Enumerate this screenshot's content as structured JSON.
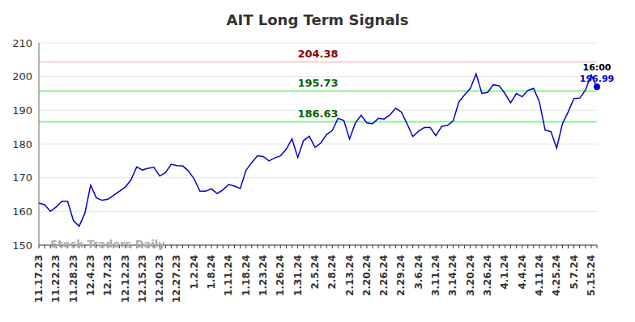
{
  "chart_data": {
    "type": "line",
    "title": "AIT Long Term Signals",
    "watermark": "Stock Traders Daily",
    "last_point_label": "16:00",
    "color": "#0000cc",
    "categories": [
      "11.17.23",
      null,
      null,
      "11.22.23",
      null,
      null,
      "11.28.23",
      null,
      null,
      "12.4.23",
      null,
      null,
      "12.7.23",
      null,
      null,
      "12.12.23",
      null,
      null,
      "12.15.23",
      null,
      null,
      "12.20.23",
      null,
      null,
      "12.27.23",
      null,
      null,
      "1.2.24",
      null,
      null,
      "1.8.24",
      null,
      null,
      "1.11.24",
      null,
      null,
      "1.18.24",
      null,
      null,
      "1.23.24",
      null,
      null,
      "1.26.24",
      null,
      null,
      "1.31.24",
      null,
      null,
      "2.5.24",
      null,
      null,
      "2.8.24",
      null,
      null,
      "2.13.24",
      null,
      null,
      "2.20.24",
      null,
      null,
      "2.26.24",
      null,
      null,
      "2.29.24",
      null,
      null,
      "3.6.24",
      null,
      null,
      "3.11.24",
      null,
      null,
      "3.14.24",
      null,
      null,
      "3.20.24",
      null,
      null,
      "3.26.24",
      null,
      null,
      "4.1.24",
      null,
      null,
      "4.4.24",
      null,
      null,
      "4.11.24",
      null,
      null,
      "4.25.24",
      null,
      null,
      "5.7.24",
      null,
      null,
      "5.15.24",
      null
    ],
    "values": [
      162.5,
      162,
      160,
      161.3,
      163,
      163,
      157.3,
      155.6,
      159.5,
      167.8,
      164,
      163.3,
      163.6,
      164.8,
      166,
      167.2,
      169.3,
      173.2,
      172.3,
      172.8,
      173.1,
      170.5,
      171.5,
      174,
      173.6,
      173.5,
      172,
      169.6,
      166,
      166,
      166.7,
      165.3,
      166.4,
      168,
      167.5,
      166.8,
      172.2,
      174.5,
      176.5,
      176.3,
      175,
      175.9,
      176.5,
      178.5,
      181.5,
      176,
      181,
      182.3,
      179,
      180.3,
      182.8,
      184,
      187.6,
      187,
      181.5,
      186.2,
      188.5,
      186.3,
      186,
      187.6,
      187.4,
      188.6,
      190.6,
      189.5,
      186,
      182.2,
      183.8,
      184.9,
      184.9,
      182.5,
      185.2,
      185.5,
      186.8,
      192.5,
      194.6,
      196.5,
      200.8,
      195,
      195.3,
      197.6,
      197.3,
      195,
      192.2,
      195,
      194,
      195.9,
      196.5,
      192.5,
      184.1,
      183.7,
      178.8,
      186,
      189.5,
      193.5,
      193.6,
      196,
      200.5,
      196.99
    ],
    "ylim": [
      150,
      210
    ],
    "yticks": [
      150,
      160,
      170,
      180,
      190,
      200,
      210
    ],
    "grid": true,
    "reference_lines": [
      {
        "value": 204.38,
        "color": "#ffcccc",
        "label_color": "#8b0000"
      },
      {
        "value": 195.73,
        "color": "#90ee90",
        "label_color": "#006400"
      },
      {
        "value": 186.63,
        "color": "#90ee90",
        "label_color": "#006400"
      }
    ]
  }
}
